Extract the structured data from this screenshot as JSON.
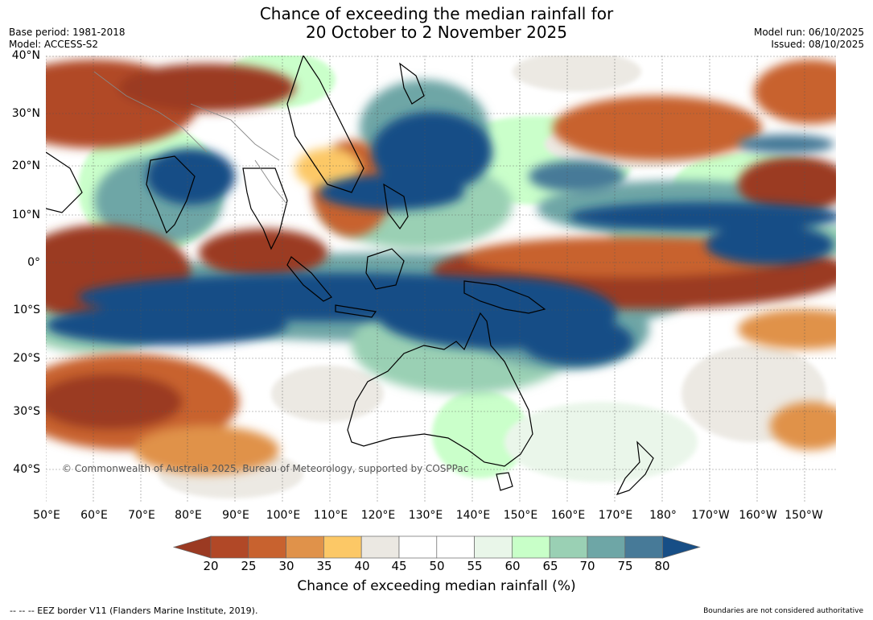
{
  "header": {
    "title_line1": "Chance of exceeding the median rainfall for",
    "title_line2": "20 October to 2 November 2025",
    "base_period": "Base period: 1981-2018",
    "model": "Model: ACCESS-S2",
    "model_run": "Model run: 06/10/2025",
    "issued": "Issued: 08/10/2025"
  },
  "map": {
    "lat_labels": [
      "40°N",
      "30°N",
      "20°N",
      "10°N",
      "0°",
      "10°S",
      "20°S",
      "30°S",
      "40°S"
    ],
    "lon_labels": [
      "50°E",
      "60°E",
      "70°E",
      "80°E",
      "90°E",
      "100°E",
      "110°E",
      "120°E",
      "130°E",
      "140°E",
      "150°E",
      "160°E",
      "170°E",
      "180°",
      "170°W",
      "160°W",
      "150°W"
    ],
    "copyright": "© Commonwealth of Australia 2025, Bureau of Meteorology, supported by COSPPac"
  },
  "colorbar": {
    "title": "Chance of exceeding median rainfall (%)",
    "ticks": [
      "20",
      "25",
      "30",
      "35",
      "40",
      "45",
      "50",
      "55",
      "60",
      "65",
      "70",
      "75",
      "80"
    ],
    "colors": [
      "#9b3a22",
      "#b14827",
      "#c8622f",
      "#e0924a",
      "#fcc866",
      "#ebe8e2",
      "#ffffff",
      "#ffffff",
      "#e9f6e9",
      "#c8ffc8",
      "#9ad0b4",
      "#6ea6a6",
      "#477a98",
      "#174e86"
    ]
  },
  "footer": {
    "eez": "--  --  -- EEZ border V11 (Flanders Marine Institute, 2019).",
    "disclaimer": "Boundaries are not considered authoritative"
  }
}
